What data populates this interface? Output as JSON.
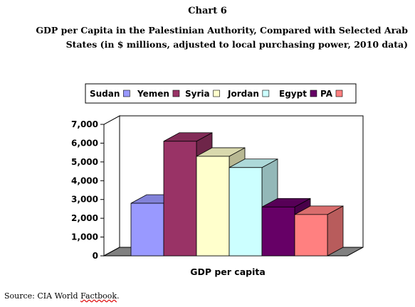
{
  "header": {
    "chart_number": "Chart 6",
    "title_line1": "GDP per Capita in the Palestinian Authority, Compared with Selected Arab",
    "title_line2": "States (in $ millions, adjusted to local purchasing power, 2010 data)"
  },
  "source": {
    "prefix": "Source:  CIA World ",
    "factbook": "Factbook",
    "suffix": "."
  },
  "chart_data": {
    "type": "bar",
    "title": "GDP per Capita in the Palestinian Authority, Compared with Selected Arab States (in $ millions, adjusted to local purchasing power, 2010 data)",
    "xlabel": "GDP per capita",
    "ylabel": "",
    "categories": [
      "GDP per capita"
    ],
    "ylim": [
      0,
      7000
    ],
    "yticks": [
      "0",
      "1,000",
      "2,000",
      "3,000",
      "4,000",
      "5,000",
      "6,000",
      "7,000"
    ],
    "grid": false,
    "three_d": true,
    "legend_position": "top",
    "series": [
      {
        "name": "Sudan",
        "values": [
          2800
        ],
        "color": "#9999ff"
      },
      {
        "name": "Yemen",
        "values": [
          6100
        ],
        "color": "#993366"
      },
      {
        "name": "Syria",
        "values": [
          5300
        ],
        "color": "#ffffcc"
      },
      {
        "name": "Jordan",
        "values": [
          4700
        ],
        "color": "#ccffff"
      },
      {
        "name": "Egypt",
        "values": [
          2600
        ],
        "color": "#660066"
      },
      {
        "name": "PA",
        "values": [
          2200
        ],
        "color": "#ff8080"
      }
    ]
  }
}
